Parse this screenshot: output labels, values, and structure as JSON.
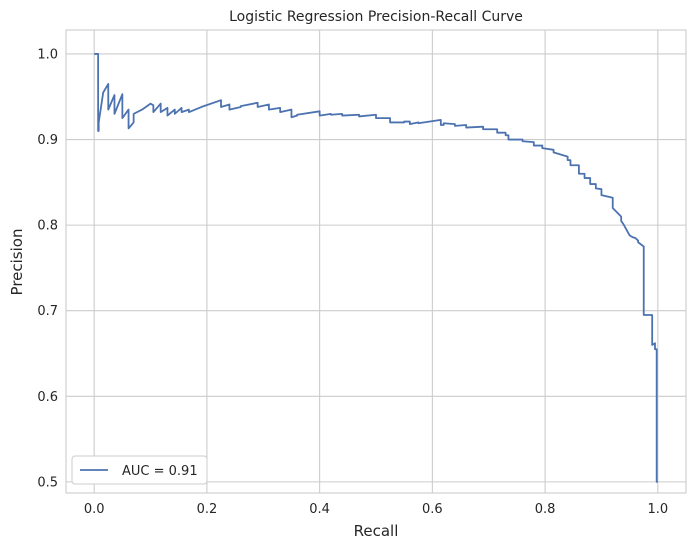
{
  "chart_data": {
    "type": "line",
    "title": "Logistic Regression Precision-Recall Curve",
    "xlabel": "Recall",
    "ylabel": "Precision",
    "xlim": [
      -0.05,
      1.05
    ],
    "ylim": [
      0.487,
      1.028
    ],
    "xticks": [
      0.0,
      0.2,
      0.4,
      0.6,
      0.8,
      1.0
    ],
    "xtick_labels": [
      "0.0",
      "0.2",
      "0.4",
      "0.6",
      "0.8",
      "1.0"
    ],
    "yticks": [
      0.5,
      0.6,
      0.7,
      0.8,
      0.9,
      1.0
    ],
    "ytick_labels": [
      "0.5",
      "0.6",
      "0.7",
      "0.8",
      "0.9",
      "1.0"
    ],
    "grid": true,
    "legend_position": "lower-left",
    "series": [
      {
        "name": "AUC = 0.91",
        "color": "#4c72b0",
        "x": [
          0.0,
          0.007,
          0.007,
          0.008,
          0.008,
          0.016,
          0.025,
          0.025,
          0.036,
          0.036,
          0.05,
          0.05,
          0.061,
          0.061,
          0.07,
          0.07,
          0.085,
          0.1,
          0.105,
          0.105,
          0.118,
          0.118,
          0.13,
          0.13,
          0.143,
          0.143,
          0.155,
          0.155,
          0.168,
          0.168,
          0.19,
          0.225,
          0.225,
          0.24,
          0.24,
          0.26,
          0.26,
          0.29,
          0.29,
          0.31,
          0.31,
          0.33,
          0.33,
          0.35,
          0.35,
          0.36,
          0.36,
          0.4,
          0.4,
          0.42,
          0.42,
          0.44,
          0.44,
          0.47,
          0.47,
          0.5,
          0.5,
          0.525,
          0.525,
          0.55,
          0.55,
          0.56,
          0.56,
          0.575,
          0.575,
          0.615,
          0.615,
          0.62,
          0.62,
          0.64,
          0.64,
          0.66,
          0.66,
          0.69,
          0.69,
          0.715,
          0.715,
          0.73,
          0.73,
          0.735,
          0.735,
          0.76,
          0.76,
          0.78,
          0.78,
          0.795,
          0.795,
          0.815,
          0.815,
          0.84,
          0.84,
          0.845,
          0.845,
          0.86,
          0.86,
          0.87,
          0.87,
          0.88,
          0.88,
          0.89,
          0.89,
          0.9,
          0.9,
          0.92,
          0.92,
          0.935,
          0.935,
          0.94,
          0.94,
          0.95,
          0.95,
          0.955,
          0.955,
          0.96,
          0.96,
          0.965,
          0.965,
          0.975,
          0.975,
          0.99,
          0.99,
          0.995,
          0.995,
          0.998,
          0.998,
          1.0
        ],
        "y": [
          1.0,
          1.0,
          0.91,
          0.91,
          0.92,
          0.955,
          0.965,
          0.935,
          0.952,
          0.93,
          0.953,
          0.925,
          0.935,
          0.913,
          0.92,
          0.93,
          0.935,
          0.942,
          0.94,
          0.932,
          0.942,
          0.932,
          0.937,
          0.928,
          0.935,
          0.93,
          0.937,
          0.932,
          0.935,
          0.932,
          0.938,
          0.946,
          0.938,
          0.941,
          0.935,
          0.938,
          0.939,
          0.943,
          0.938,
          0.941,
          0.935,
          0.937,
          0.932,
          0.935,
          0.926,
          0.928,
          0.929,
          0.933,
          0.928,
          0.93,
          0.929,
          0.93,
          0.928,
          0.929,
          0.927,
          0.929,
          0.925,
          0.925,
          0.92,
          0.92,
          0.921,
          0.921,
          0.918,
          0.92,
          0.919,
          0.923,
          0.917,
          0.917,
          0.919,
          0.918,
          0.916,
          0.917,
          0.914,
          0.915,
          0.912,
          0.912,
          0.908,
          0.908,
          0.905,
          0.905,
          0.9,
          0.9,
          0.898,
          0.897,
          0.893,
          0.893,
          0.89,
          0.888,
          0.885,
          0.88,
          0.876,
          0.876,
          0.87,
          0.87,
          0.86,
          0.86,
          0.855,
          0.855,
          0.848,
          0.848,
          0.843,
          0.842,
          0.835,
          0.832,
          0.82,
          0.81,
          0.805,
          0.8,
          0.8,
          0.788,
          0.788,
          0.786,
          0.786,
          0.785,
          0.785,
          0.782,
          0.78,
          0.775,
          0.695,
          0.695,
          0.66,
          0.662,
          0.655,
          0.655,
          0.5,
          0.5
        ]
      }
    ]
  }
}
